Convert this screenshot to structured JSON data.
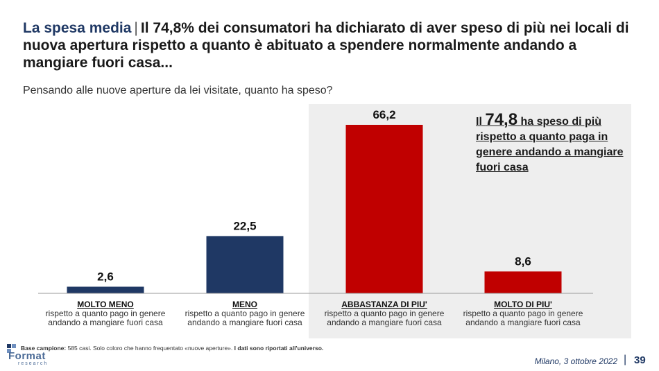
{
  "header": {
    "title_accent": "La spesa media",
    "title_sep": "|",
    "title_main": "Il 74,8% dei consumatori ha dichiarato di aver speso di più nei locali di nuova apertura rispetto a quanto è abituato a spendere normalmente andando a mangiare fuori casa...",
    "question": "Pensando alle nuove aperture da lei visitate, quanto ha speso?"
  },
  "callout": {
    "prefix": "Il",
    "value": "74,8",
    "text": "ha speso di più rispetto a quanto paga in genere andando a mangiare fuori casa"
  },
  "chart_data": {
    "type": "bar",
    "categories": [
      "MOLTO MENO",
      "MENO",
      "ABBASTANZA DI PIU'",
      "MOLTO DI PIU'"
    ],
    "category_subtitles": [
      "rispetto a quanto pago in genere andando a mangiare fuori casa",
      "rispetto a quanto pago in genere andando a mangiare fuori casa",
      "rispetto a quanto pago in genere andando a mangiare fuori casa",
      "rispetto a quanto pago in genere andando a mangiare fuori casa"
    ],
    "values": [
      2.6,
      22.5,
      66.2,
      8.6
    ],
    "value_labels": [
      "2,6",
      "22,5",
      "66,2",
      "8,6"
    ],
    "colors": [
      "#1f3864",
      "#1f3864",
      "#c00000",
      "#c00000"
    ],
    "ylim": [
      0,
      66.2
    ],
    "grid": false,
    "highlighted_categories": [
      "ABBASTANZA DI PIU'",
      "MOLTO DI PIU'"
    ]
  },
  "footer": {
    "base_label": "Base campione:",
    "base_text": "585 casi. Solo coloro che hanno frequentato «nuove aperture».",
    "base_bold": "I dati sono riportati all'universo.",
    "logo_word": "Format",
    "logo_sub": "research",
    "date": "Milano, 3 ottobre 2022",
    "pipe": "|",
    "page": "39"
  }
}
